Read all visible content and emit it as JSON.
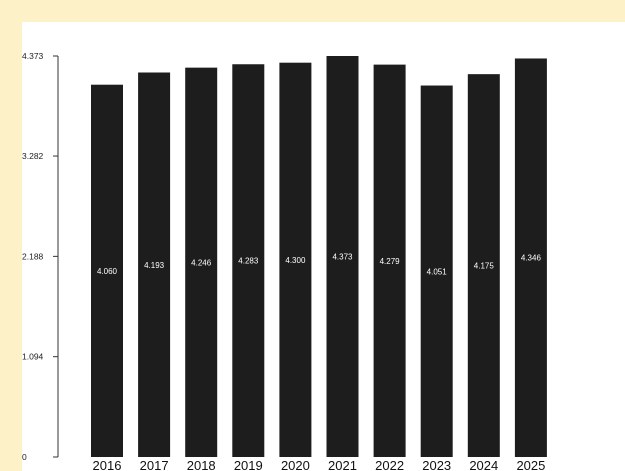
{
  "chart_data": {
    "type": "bar",
    "categories": [
      "2016",
      "2017",
      "2018",
      "2019",
      "2020",
      "2021",
      "2022",
      "2023",
      "2024",
      "2025"
    ],
    "values": [
      4.06,
      4.193,
      4.246,
      4.283,
      4.3,
      4.373,
      4.279,
      4.051,
      4.175,
      4.346
    ],
    "data_labels": [
      "4.060",
      "4.193",
      "4.246",
      "4.283",
      "4.300",
      "4.373",
      "4.279",
      "4.051",
      "4.175",
      "4.346"
    ],
    "y_ticks": [
      "0",
      "1.094",
      "2.188",
      "3.282",
      "4.373"
    ],
    "y_tick_values": [
      0,
      1.094,
      2.188,
      3.282,
      4.373
    ],
    "ylim": [
      0,
      4.373
    ],
    "title": "",
    "xlabel": "",
    "ylabel": "",
    "grid": false,
    "legend": "none",
    "bar_color": "#1e1d1d",
    "label_color": "#ffffff",
    "background_color": "#fdf1c7"
  }
}
